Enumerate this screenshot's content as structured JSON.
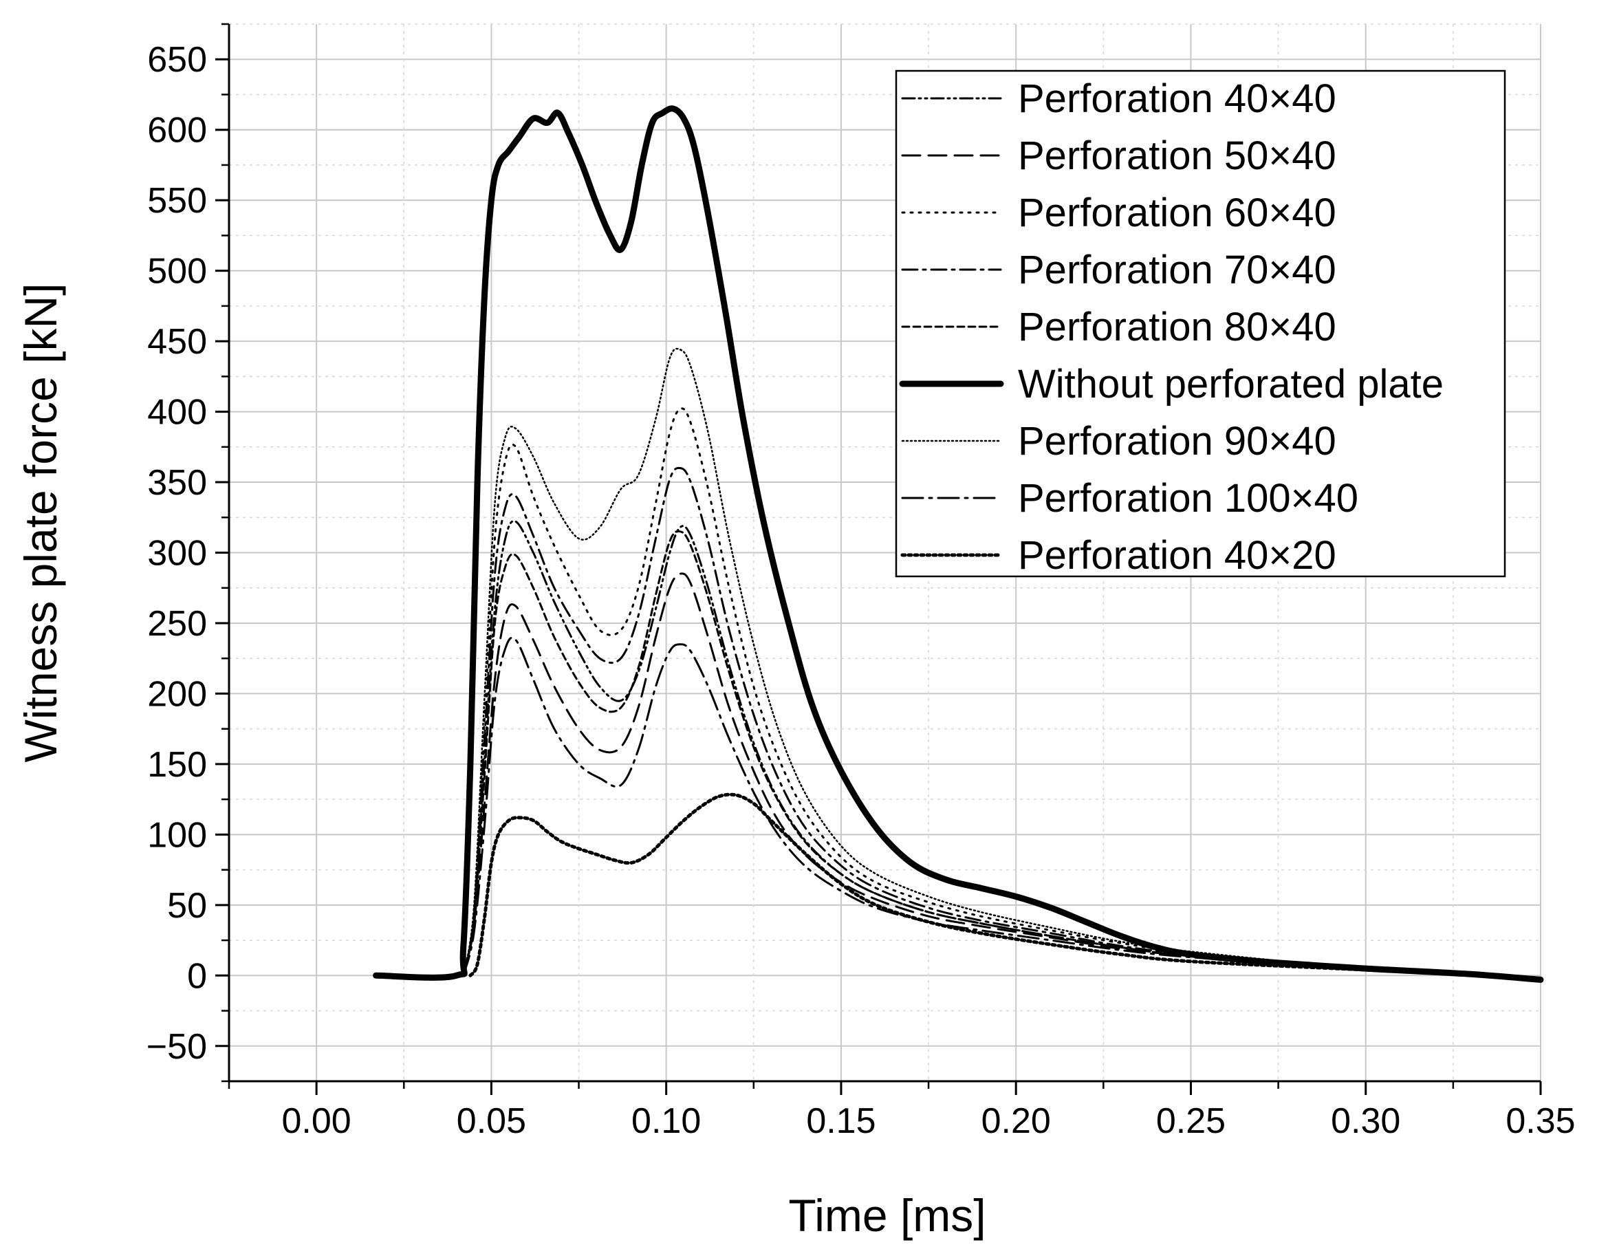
{
  "chart_data": {
    "type": "line",
    "title": "",
    "xlabel": "Time [ms]",
    "ylabel": "Witness plate force [kN]",
    "xlim": [
      -0.025,
      0.35
    ],
    "ylim": [
      -75,
      675
    ],
    "xticks": [
      0.0,
      0.05,
      0.1,
      0.15,
      0.2,
      0.25,
      0.3,
      0.35
    ],
    "xtick_labels": [
      "0.00",
      "0.05",
      "0.10",
      "0.15",
      "0.20",
      "0.25",
      "0.30",
      "0.35"
    ],
    "yticks": [
      -50,
      0,
      50,
      100,
      150,
      200,
      250,
      300,
      350,
      400,
      450,
      500,
      550,
      600,
      650
    ],
    "ytick_labels": [
      "−50",
      "0",
      "50",
      "100",
      "150",
      "200",
      "250",
      "300",
      "350",
      "400",
      "450",
      "500",
      "550",
      "600",
      "650"
    ],
    "grid": true,
    "legend_position": "top-right",
    "series": [
      {
        "name": "Perforation 40×40",
        "style": "dash-dot-dot",
        "x": [
          0.042,
          0.045,
          0.048,
          0.051,
          0.054,
          0.057,
          0.062,
          0.068,
          0.075,
          0.081,
          0.087,
          0.092,
          0.097,
          0.101,
          0.104,
          0.107,
          0.112,
          0.118,
          0.125,
          0.132,
          0.14,
          0.15,
          0.16,
          0.175,
          0.19,
          0.21,
          0.23,
          0.25,
          0.3,
          0.35
        ],
        "y": [
          0,
          40,
          150,
          260,
          310,
          322,
          300,
          265,
          230,
          205,
          195,
          215,
          260,
          300,
          318,
          312,
          275,
          220,
          165,
          125,
          95,
          72,
          58,
          45,
          37,
          28,
          20,
          14,
          5,
          -2
        ]
      },
      {
        "name": "Perforation 50×40",
        "style": "dash",
        "x": [
          0.042,
          0.045,
          0.048,
          0.051,
          0.054,
          0.057,
          0.062,
          0.068,
          0.075,
          0.081,
          0.087,
          0.092,
          0.097,
          0.101,
          0.104,
          0.107,
          0.112,
          0.118,
          0.125,
          0.132,
          0.14,
          0.15,
          0.16,
          0.175,
          0.19,
          0.21,
          0.23,
          0.25,
          0.3,
          0.35
        ],
        "y": [
          0,
          35,
          120,
          210,
          255,
          262,
          238,
          205,
          175,
          160,
          162,
          190,
          240,
          275,
          285,
          278,
          240,
          190,
          145,
          110,
          85,
          66,
          54,
          42,
          35,
          27,
          19,
          14,
          5,
          -2
        ]
      },
      {
        "name": "Perforation 60×40",
        "style": "dot",
        "x": [
          0.042,
          0.045,
          0.048,
          0.051,
          0.054,
          0.057,
          0.062,
          0.068,
          0.075,
          0.081,
          0.087,
          0.092,
          0.097,
          0.101,
          0.104,
          0.107,
          0.112,
          0.118,
          0.125,
          0.132,
          0.14,
          0.15,
          0.16,
          0.175,
          0.19,
          0.21,
          0.23,
          0.25,
          0.3,
          0.35
        ],
        "y": [
          0,
          45,
          180,
          310,
          365,
          375,
          340,
          305,
          270,
          245,
          245,
          275,
          335,
          385,
          402,
          392,
          345,
          275,
          205,
          155,
          115,
          84,
          66,
          52,
          42,
          32,
          23,
          16,
          5,
          -2
        ]
      },
      {
        "name": "Perforation 70×40",
        "style": "dash-dot",
        "x": [
          0.042,
          0.045,
          0.048,
          0.051,
          0.054,
          0.057,
          0.062,
          0.068,
          0.075,
          0.081,
          0.087,
          0.092,
          0.097,
          0.101,
          0.104,
          0.107,
          0.112,
          0.118,
          0.125,
          0.132,
          0.14,
          0.15,
          0.16,
          0.175,
          0.19,
          0.21,
          0.23,
          0.25,
          0.3,
          0.35
        ],
        "y": [
          0,
          42,
          165,
          285,
          332,
          340,
          312,
          275,
          245,
          225,
          225,
          255,
          310,
          352,
          360,
          350,
          308,
          245,
          185,
          140,
          104,
          78,
          62,
          48,
          39,
          30,
          21,
          15,
          5,
          -2
        ]
      },
      {
        "name": "Perforation 80×40",
        "style": "short-dash",
        "x": [
          0.042,
          0.045,
          0.048,
          0.051,
          0.054,
          0.057,
          0.062,
          0.068,
          0.075,
          0.081,
          0.087,
          0.092,
          0.097,
          0.101,
          0.104,
          0.107,
          0.112,
          0.118,
          0.125,
          0.132,
          0.14,
          0.15,
          0.16,
          0.175,
          0.19,
          0.21,
          0.23,
          0.25,
          0.3,
          0.35
        ],
        "y": [
          0,
          38,
          140,
          250,
          290,
          298,
          275,
          240,
          208,
          190,
          190,
          218,
          270,
          308,
          315,
          305,
          268,
          215,
          162,
          124,
          94,
          72,
          58,
          45,
          37,
          28,
          20,
          14,
          5,
          -2
        ]
      },
      {
        "name": "Without perforated plate",
        "style": "solid-thick",
        "x": [
          0.017,
          0.04,
          0.042,
          0.044,
          0.046,
          0.048,
          0.05,
          0.052,
          0.055,
          0.058,
          0.062,
          0.066,
          0.069,
          0.072,
          0.076,
          0.08,
          0.084,
          0.087,
          0.09,
          0.093,
          0.096,
          0.099,
          0.102,
          0.105,
          0.108,
          0.112,
          0.117,
          0.122,
          0.128,
          0.135,
          0.142,
          0.15,
          0.16,
          0.17,
          0.18,
          0.19,
          0.2,
          0.21,
          0.22,
          0.23,
          0.24,
          0.25,
          0.27,
          0.3,
          0.33,
          0.35
        ],
        "y": [
          0,
          0,
          20,
          150,
          350,
          480,
          550,
          575,
          585,
          595,
          608,
          605,
          612,
          598,
          575,
          548,
          525,
          515,
          535,
          575,
          605,
          612,
          615,
          608,
          588,
          540,
          470,
          395,
          320,
          250,
          190,
          145,
          105,
          80,
          68,
          62,
          56,
          48,
          38,
          28,
          20,
          15,
          10,
          5,
          1,
          -3
        ]
      },
      {
        "name": "Perforation 90×40",
        "style": "fine-dot",
        "x": [
          0.042,
          0.045,
          0.048,
          0.051,
          0.054,
          0.057,
          0.062,
          0.068,
          0.075,
          0.081,
          0.087,
          0.092,
          0.097,
          0.101,
          0.104,
          0.107,
          0.112,
          0.118,
          0.125,
          0.132,
          0.14,
          0.15,
          0.16,
          0.175,
          0.19,
          0.21,
          0.23,
          0.25,
          0.3,
          0.35
        ],
        "y": [
          0,
          48,
          195,
          335,
          382,
          388,
          368,
          335,
          310,
          318,
          345,
          355,
          395,
          438,
          444,
          432,
          385,
          310,
          235,
          175,
          128,
          92,
          72,
          56,
          45,
          34,
          24,
          17,
          5,
          -2
        ]
      },
      {
        "name": "Perforation 100×40",
        "style": "long-dash-dot",
        "x": [
          0.042,
          0.045,
          0.048,
          0.051,
          0.054,
          0.057,
          0.062,
          0.068,
          0.075,
          0.081,
          0.087,
          0.092,
          0.097,
          0.101,
          0.104,
          0.107,
          0.112,
          0.118,
          0.125,
          0.132,
          0.14,
          0.15,
          0.16,
          0.175,
          0.19,
          0.21,
          0.23,
          0.25,
          0.3,
          0.35
        ],
        "y": [
          0,
          30,
          105,
          195,
          232,
          238,
          210,
          175,
          150,
          140,
          135,
          160,
          205,
          230,
          235,
          230,
          205,
          168,
          130,
          100,
          77,
          60,
          48,
          38,
          32,
          25,
          18,
          13,
          4,
          -2
        ]
      },
      {
        "name": "Perforation 40×20",
        "style": "heavy-dot",
        "x": [
          0.044,
          0.046,
          0.048,
          0.05,
          0.052,
          0.055,
          0.058,
          0.062,
          0.066,
          0.07,
          0.075,
          0.08,
          0.085,
          0.09,
          0.095,
          0.1,
          0.105,
          0.11,
          0.115,
          0.12,
          0.125,
          0.13,
          0.14,
          0.15,
          0.16,
          0.175,
          0.19,
          0.21,
          0.23,
          0.25,
          0.3,
          0.35
        ],
        "y": [
          0,
          8,
          40,
          80,
          100,
          110,
          112,
          110,
          102,
          95,
          90,
          86,
          82,
          80,
          86,
          98,
          110,
          120,
          127,
          128,
          122,
          110,
          86,
          65,
          50,
          38,
          30,
          22,
          15,
          10,
          4,
          -2
        ]
      }
    ]
  }
}
